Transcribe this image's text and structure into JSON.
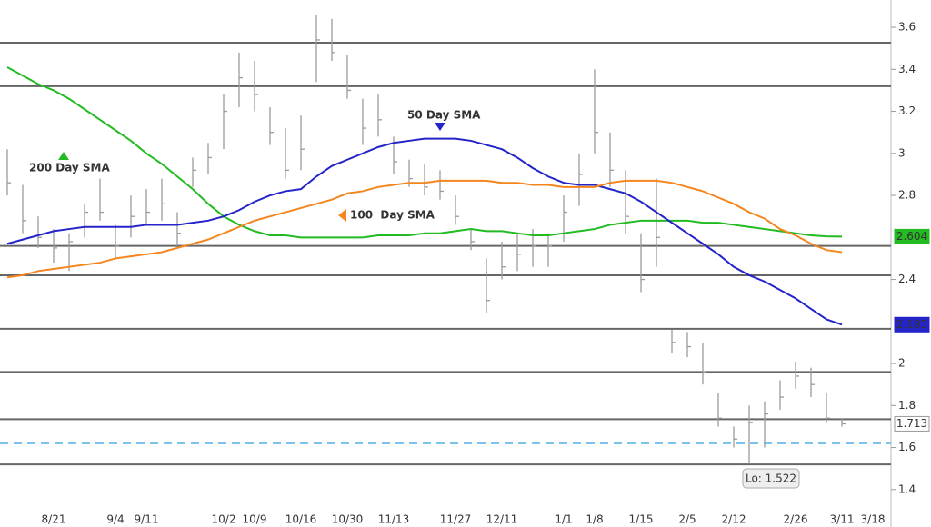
{
  "chart_data": {
    "type": "ohlc",
    "categories": [
      null,
      null,
      null,
      "8/21",
      null,
      null,
      null,
      "9/4",
      null,
      "9/11",
      null,
      null,
      null,
      null,
      "10/2",
      null,
      "10/9",
      null,
      null,
      "10/16",
      null,
      null,
      "10/30",
      null,
      null,
      "11/13",
      null,
      null,
      null,
      "11/27",
      null,
      null,
      "12/11",
      null,
      null,
      null,
      "1/1",
      null,
      "1/8",
      null,
      null,
      "1/15",
      null,
      null,
      "2/5",
      null,
      null,
      "2/12",
      null,
      null,
      null,
      "2/26",
      null,
      null,
      "3/11",
      null,
      "3/18"
    ],
    "high": [
      3.02,
      2.85,
      2.7,
      2.64,
      2.62,
      2.76,
      2.88,
      2.66,
      2.8,
      2.83,
      2.88,
      2.72,
      2.98,
      3.05,
      3.28,
      3.48,
      3.44,
      3.22,
      3.12,
      3.18,
      3.66,
      3.64,
      3.47,
      3.26,
      3.28,
      3.08,
      2.97,
      2.95,
      2.92,
      2.8,
      2.64,
      2.5,
      2.58,
      2.62,
      2.64,
      2.62,
      2.8,
      3.0,
      3.4,
      3.1,
      2.92,
      2.62,
      2.88,
      2.16,
      2.15,
      2.1,
      1.86,
      1.7,
      1.8,
      1.82,
      1.92,
      2.01,
      1.98,
      1.86,
      1.74,
      null,
      null
    ],
    "low": [
      2.8,
      2.62,
      2.55,
      2.48,
      2.44,
      2.6,
      2.68,
      2.5,
      2.6,
      2.66,
      2.68,
      2.56,
      2.84,
      2.9,
      3.02,
      3.22,
      3.2,
      3.04,
      2.88,
      2.92,
      3.34,
      3.44,
      3.26,
      3.04,
      3.08,
      2.9,
      2.84,
      2.8,
      2.78,
      2.66,
      2.54,
      2.24,
      2.4,
      2.44,
      2.46,
      2.46,
      2.58,
      2.75,
      3.0,
      2.84,
      2.62,
      2.34,
      2.46,
      2.05,
      2.03,
      1.9,
      1.7,
      1.6,
      1.522,
      1.6,
      1.78,
      1.88,
      1.84,
      1.72,
      1.7,
      null,
      null
    ],
    "close": [
      2.86,
      2.68,
      2.6,
      2.55,
      2.58,
      2.72,
      2.72,
      2.56,
      2.7,
      2.72,
      2.76,
      2.62,
      2.92,
      2.98,
      3.2,
      3.36,
      3.28,
      3.1,
      2.92,
      3.02,
      3.54,
      3.48,
      3.3,
      3.12,
      3.16,
      2.96,
      2.88,
      2.84,
      2.82,
      2.7,
      2.58,
      2.3,
      2.46,
      2.52,
      2.56,
      2.56,
      2.72,
      2.9,
      3.1,
      2.92,
      2.7,
      2.4,
      2.6,
      2.1,
      2.08,
      1.96,
      1.74,
      1.64,
      1.72,
      1.76,
      1.84,
      1.94,
      1.9,
      1.74,
      1.713,
      null,
      null
    ],
    "bar_color": "#9a9a9a",
    "ylim": [
      1.33,
      3.73
    ],
    "yticks": [
      1.4,
      1.6,
      1.8,
      2,
      2.4,
      2.8,
      3,
      3.2,
      3.4,
      3.6
    ],
    "series": [
      {
        "name": "200 Day SMA",
        "color": "#22bb22",
        "values": [
          3.41,
          3.37,
          3.33,
          3.3,
          3.26,
          3.21,
          3.16,
          3.11,
          3.06,
          3.0,
          2.95,
          2.89,
          2.83,
          2.76,
          2.7,
          2.66,
          2.63,
          2.61,
          2.61,
          2.6,
          2.6,
          2.6,
          2.6,
          2.6,
          2.61,
          2.61,
          2.61,
          2.62,
          2.62,
          2.63,
          2.64,
          2.63,
          2.63,
          2.62,
          2.61,
          2.61,
          2.62,
          2.63,
          2.64,
          2.66,
          2.67,
          2.68,
          2.68,
          2.68,
          2.68,
          2.67,
          2.67,
          2.66,
          2.65,
          2.64,
          2.63,
          2.62,
          2.61,
          2.605,
          2.604,
          null,
          null
        ]
      },
      {
        "name": "50 Day SMA",
        "color": "#2424c8",
        "values": [
          2.57,
          2.59,
          2.61,
          2.63,
          2.64,
          2.65,
          2.65,
          2.65,
          2.65,
          2.66,
          2.66,
          2.66,
          2.67,
          2.68,
          2.7,
          2.73,
          2.77,
          2.8,
          2.82,
          2.83,
          2.89,
          2.94,
          2.97,
          3.0,
          3.03,
          3.05,
          3.06,
          3.07,
          3.07,
          3.07,
          3.06,
          3.04,
          3.02,
          2.98,
          2.93,
          2.89,
          2.86,
          2.85,
          2.85,
          2.83,
          2.81,
          2.77,
          2.72,
          2.67,
          2.62,
          2.57,
          2.52,
          2.46,
          2.42,
          2.39,
          2.35,
          2.31,
          2.26,
          2.21,
          2.185,
          null,
          null
        ]
      },
      {
        "name": "100  Day SMA",
        "color": "#f5861f",
        "values": [
          2.41,
          2.42,
          2.44,
          2.45,
          2.46,
          2.47,
          2.48,
          2.5,
          2.51,
          2.52,
          2.53,
          2.55,
          2.57,
          2.59,
          2.62,
          2.65,
          2.68,
          2.7,
          2.72,
          2.74,
          2.76,
          2.78,
          2.81,
          2.82,
          2.84,
          2.85,
          2.86,
          2.86,
          2.87,
          2.87,
          2.87,
          2.87,
          2.86,
          2.86,
          2.85,
          2.85,
          2.84,
          2.84,
          2.84,
          2.86,
          2.87,
          2.87,
          2.87,
          2.86,
          2.84,
          2.82,
          2.79,
          2.76,
          2.72,
          2.69,
          2.64,
          2.61,
          2.57,
          2.54,
          2.53,
          null,
          null
        ]
      }
    ],
    "levels": [
      3.527,
      3.32,
      2.56,
      2.42,
      2.165,
      1.96,
      1.735,
      1.52
    ],
    "level_color": "#666666",
    "support": 1.62,
    "support_color": "#7cc3ee",
    "annotation": "Lo: 1.522"
  }
}
